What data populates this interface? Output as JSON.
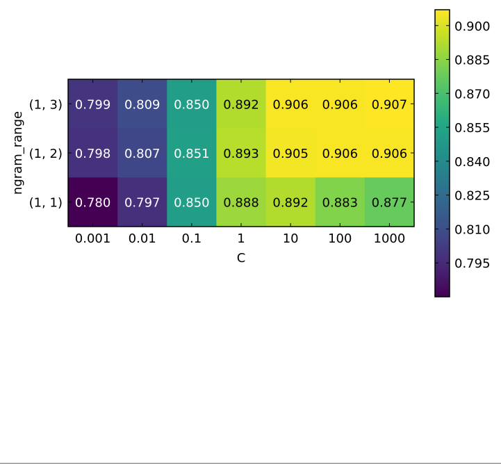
{
  "chart_data": {
    "type": "heatmap",
    "xlabel": "C",
    "ylabel": "ngram_range",
    "x_categories": [
      "0.001",
      "0.01",
      "0.1",
      "1",
      "10",
      "100",
      "1000"
    ],
    "y_categories_top_to_bottom": [
      "(1, 3)",
      "(1, 2)",
      "(1, 1)"
    ],
    "values_top_to_bottom": [
      [
        0.799,
        0.809,
        0.85,
        0.892,
        0.906,
        0.906,
        0.907
      ],
      [
        0.798,
        0.807,
        0.851,
        0.893,
        0.905,
        0.906,
        0.906
      ],
      [
        0.78,
        0.797,
        0.85,
        0.888,
        0.892,
        0.883,
        0.877
      ]
    ],
    "cell_labels_top_to_bottom": [
      [
        "0.799",
        "0.809",
        "0.850",
        "0.892",
        "0.906",
        "0.906",
        "0.907"
      ],
      [
        "0.798",
        "0.807",
        "0.851",
        "0.893",
        "0.905",
        "0.906",
        "0.906"
      ],
      [
        "0.780",
        "0.797",
        "0.850",
        "0.888",
        "0.892",
        "0.883",
        "0.877"
      ]
    ],
    "colormap": "viridis",
    "colorbar": {
      "vmin": 0.78,
      "vmax": 0.907,
      "ticks": [
        0.795,
        0.81,
        0.825,
        0.84,
        0.855,
        0.87,
        0.885,
        0.9
      ],
      "tick_labels": [
        "0.795",
        "0.810",
        "0.825",
        "0.840",
        "0.855",
        "0.870",
        "0.885",
        "0.900"
      ]
    },
    "grid": false
  }
}
